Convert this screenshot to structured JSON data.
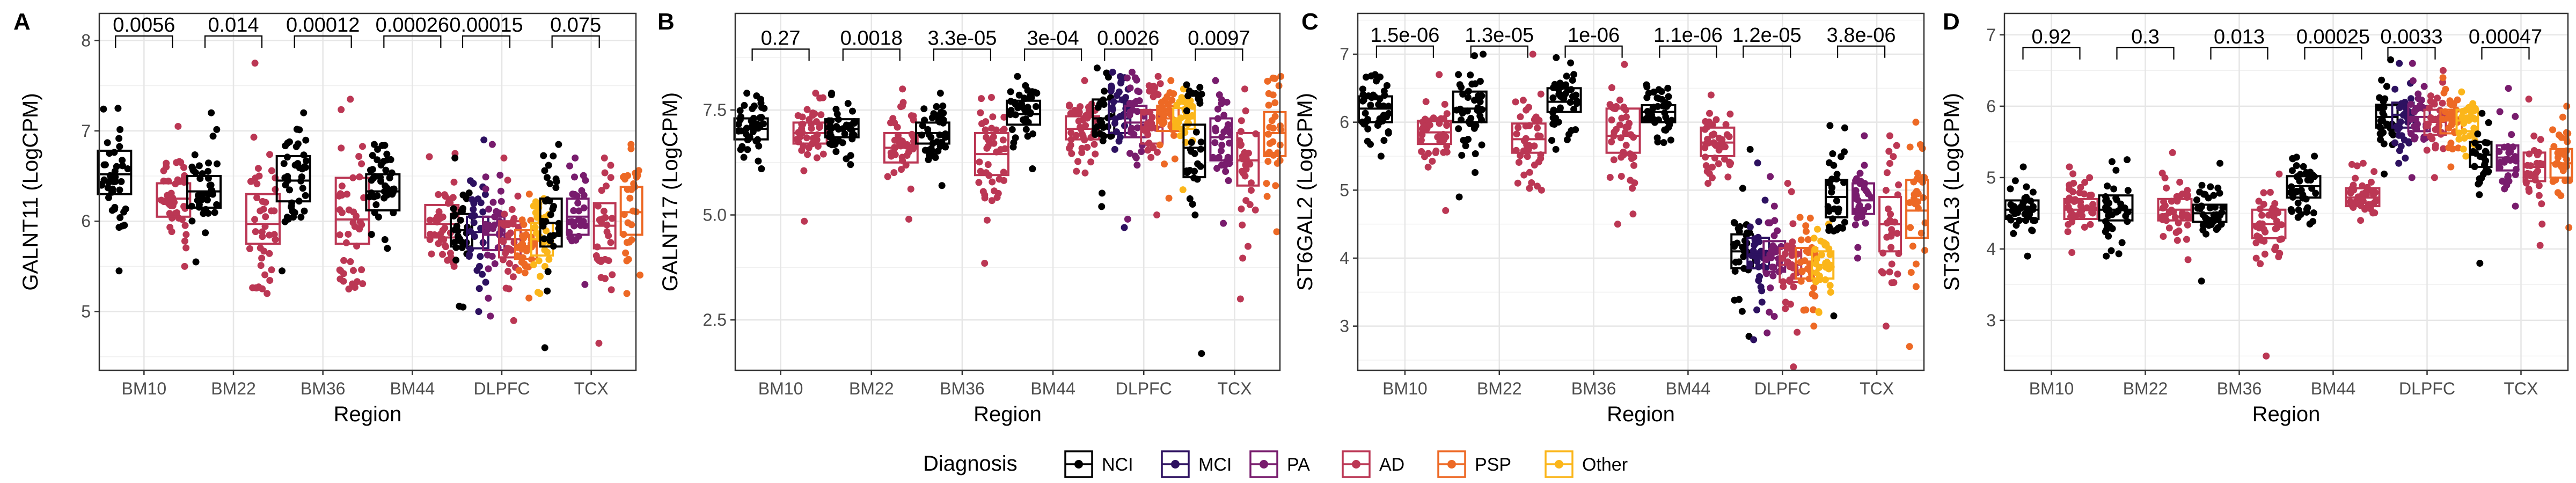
{
  "legend": {
    "title": "Diagnosis",
    "entries": [
      {
        "name": "NCI",
        "color": "#000000"
      },
      {
        "name": "MCI",
        "color": "#2d1160"
      },
      {
        "name": "PA",
        "color": "#781c6d"
      },
      {
        "name": "AD",
        "color": "#bb3754"
      },
      {
        "name": "PSP",
        "color": "#ed6925"
      },
      {
        "name": "Other",
        "color": "#fbb61a"
      }
    ]
  },
  "chart_data": [
    {
      "panel": "A",
      "type": "box",
      "ylabel": "GALNT11 (LogCPM)",
      "xlabel": "Region",
      "categories": [
        "BM10",
        "BM22",
        "BM36",
        "BM44",
        "DLPFC",
        "TCX"
      ],
      "ylim": [
        4.35,
        8.3
      ],
      "yticks": [
        5,
        6,
        7,
        8
      ],
      "pvalues": [
        "0.0056",
        "0.014",
        "0.00012",
        "0.00026",
        "0.00015",
        "0.075"
      ],
      "bracket_y": 8.05,
      "groups": [
        {
          "region": "BM10",
          "series": [
            {
              "name": "NCI",
              "q1": 6.3,
              "median": 6.52,
              "q3": 6.78,
              "min": 5.45,
              "max": 7.25
            },
            {
              "name": "AD",
              "q1": 6.05,
              "median": 6.25,
              "q3": 6.42,
              "min": 5.5,
              "max": 7.05
            }
          ]
        },
        {
          "region": "BM22",
          "series": [
            {
              "name": "NCI",
              "q1": 6.15,
              "median": 6.33,
              "q3": 6.5,
              "min": 5.55,
              "max": 7.2
            },
            {
              "name": "AD",
              "q1": 5.75,
              "median": 5.97,
              "q3": 6.3,
              "min": 5.2,
              "max": 7.75
            }
          ]
        },
        {
          "region": "BM36",
          "series": [
            {
              "name": "NCI",
              "q1": 6.22,
              "median": 6.45,
              "q3": 6.72,
              "min": 5.45,
              "max": 7.2
            },
            {
              "name": "AD",
              "q1": 5.75,
              "median": 6.02,
              "q3": 6.48,
              "min": 5.25,
              "max": 7.35
            }
          ]
        },
        {
          "region": "BM44",
          "series": [
            {
              "name": "NCI",
              "q1": 6.12,
              "median": 6.33,
              "q3": 6.52,
              "min": 5.7,
              "max": 6.85
            },
            {
              "name": "AD",
              "q1": 5.82,
              "median": 5.97,
              "q3": 6.18,
              "min": 5.5,
              "max": 6.75
            }
          ]
        },
        {
          "region": "DLPFC",
          "series": [
            {
              "name": "NCI",
              "q1": 5.72,
              "median": 5.9,
              "q3": 6.08,
              "min": 5.05,
              "max": 6.7
            },
            {
              "name": "MCI",
              "q1": 5.7,
              "median": 5.88,
              "q3": 6.05,
              "min": 5.0,
              "max": 6.9
            },
            {
              "name": "PA",
              "q1": 5.68,
              "median": 5.85,
              "q3": 6.05,
              "min": 4.95,
              "max": 6.85
            },
            {
              "name": "AD",
              "q1": 5.6,
              "median": 5.8,
              "q3": 6.0,
              "min": 4.9,
              "max": 6.7
            },
            {
              "name": "PSP",
              "q1": 5.58,
              "median": 5.72,
              "q3": 5.9,
              "min": 5.15,
              "max": 6.3
            },
            {
              "name": "Other",
              "q1": 5.62,
              "median": 5.8,
              "q3": 5.98,
              "min": 5.2,
              "max": 6.25
            }
          ]
        },
        {
          "region": "TCX",
          "series": [
            {
              "name": "NCI",
              "q1": 5.72,
              "median": 5.98,
              "q3": 6.25,
              "min": 4.6,
              "max": 6.85
            },
            {
              "name": "PA",
              "q1": 5.85,
              "median": 6.05,
              "q3": 6.25,
              "min": 5.3,
              "max": 6.7
            },
            {
              "name": "AD",
              "q1": 5.7,
              "median": 5.95,
              "q3": 6.2,
              "min": 4.65,
              "max": 6.7
            },
            {
              "name": "PSP",
              "q1": 5.85,
              "median": 6.1,
              "q3": 6.38,
              "min": 5.2,
              "max": 6.85
            }
          ]
        }
      ]
    },
    {
      "panel": "B",
      "type": "box",
      "ylabel": "GALNT17 (LogCPM)",
      "xlabel": "Region",
      "categories": [
        "BM10",
        "BM22",
        "BM36",
        "BM44",
        "DLPFC",
        "TCX"
      ],
      "ylim": [
        1.3,
        9.8
      ],
      "yticks": [
        2.5,
        5.0,
        7.5
      ],
      "ytick_labels": [
        "2.5",
        "5.0",
        "7.5"
      ],
      "pvalues": [
        "0.27",
        "0.0018",
        "3.3e-05",
        "3e-04",
        "0.0026",
        "0.0097"
      ],
      "bracket_y": 8.95,
      "groups": [
        {
          "region": "BM10",
          "series": [
            {
              "name": "NCI",
              "q1": 6.8,
              "median": 7.05,
              "q3": 7.3,
              "min": 6.1,
              "max": 7.9
            },
            {
              "name": "AD",
              "q1": 6.7,
              "median": 6.95,
              "q3": 7.2,
              "min": 4.85,
              "max": 7.9
            }
          ]
        },
        {
          "region": "BM22",
          "series": [
            {
              "name": "NCI",
              "q1": 6.85,
              "median": 7.05,
              "q3": 7.28,
              "min": 6.2,
              "max": 7.9
            },
            {
              "name": "AD",
              "q1": 6.25,
              "median": 6.6,
              "q3": 6.95,
              "min": 4.9,
              "max": 8.0
            }
          ]
        },
        {
          "region": "BM36",
          "series": [
            {
              "name": "NCI",
              "q1": 6.7,
              "median": 6.95,
              "q3": 7.2,
              "min": 5.7,
              "max": 7.9
            },
            {
              "name": "AD",
              "q1": 5.95,
              "median": 6.45,
              "q3": 6.95,
              "min": 3.85,
              "max": 7.8
            }
          ]
        },
        {
          "region": "BM44",
          "series": [
            {
              "name": "NCI",
              "q1": 7.15,
              "median": 7.4,
              "q3": 7.72,
              "min": 6.1,
              "max": 8.3
            },
            {
              "name": "AD",
              "q1": 6.8,
              "median": 7.05,
              "q3": 7.35,
              "min": 6.0,
              "max": 8.2
            }
          ]
        },
        {
          "region": "DLPFC",
          "series": [
            {
              "name": "NCI",
              "q1": 6.9,
              "median": 7.3,
              "q3": 7.75,
              "min": 5.2,
              "max": 8.5
            },
            {
              "name": "MCI",
              "q1": 6.95,
              "median": 7.3,
              "q3": 7.7,
              "min": 4.7,
              "max": 8.4
            },
            {
              "name": "PA",
              "q1": 6.85,
              "median": 7.2,
              "q3": 7.6,
              "min": 4.9,
              "max": 8.4
            },
            {
              "name": "AD",
              "q1": 6.7,
              "median": 7.1,
              "q3": 7.5,
              "min": 5.0,
              "max": 8.3
            },
            {
              "name": "PSP",
              "q1": 7.0,
              "median": 7.3,
              "q3": 7.6,
              "min": 5.4,
              "max": 8.2
            },
            {
              "name": "Other",
              "q1": 7.05,
              "median": 7.3,
              "q3": 7.55,
              "min": 5.6,
              "max": 8.0
            }
          ]
        },
        {
          "region": "TCX",
          "series": [
            {
              "name": "NCI",
              "q1": 5.9,
              "median": 6.6,
              "q3": 7.15,
              "min": 1.7,
              "max": 8.1
            },
            {
              "name": "PA",
              "q1": 6.3,
              "median": 6.85,
              "q3": 7.3,
              "min": 4.8,
              "max": 8.2
            },
            {
              "name": "AD",
              "q1": 5.7,
              "median": 6.3,
              "q3": 6.95,
              "min": 3.0,
              "max": 8.0
            },
            {
              "name": "PSP",
              "q1": 6.4,
              "median": 6.95,
              "q3": 7.45,
              "min": 4.6,
              "max": 8.3
            }
          ]
        }
      ]
    },
    {
      "panel": "C",
      "type": "box",
      "ylabel": "ST6GAL2 (LogCPM)",
      "xlabel": "Region",
      "categories": [
        "BM10",
        "BM22",
        "BM36",
        "BM44",
        "DLPFC",
        "TCX"
      ],
      "ylim": [
        2.35,
        7.6
      ],
      "yticks": [
        3,
        4,
        5,
        6,
        7
      ],
      "pvalues": [
        "1.5e-06",
        "1.3e-05",
        "1e-06",
        "1.1e-06",
        "1.2e-05",
        "3.8e-06"
      ],
      "bracket_y": 7.12,
      "groups": [
        {
          "region": "BM10",
          "series": [
            {
              "name": "NCI",
              "q1": 6.0,
              "median": 6.2,
              "q3": 6.38,
              "min": 5.5,
              "max": 6.7
            },
            {
              "name": "AD",
              "q1": 5.68,
              "median": 5.85,
              "q3": 6.02,
              "min": 4.7,
              "max": 6.7
            }
          ]
        },
        {
          "region": "BM22",
          "series": [
            {
              "name": "NCI",
              "q1": 6.0,
              "median": 6.2,
              "q3": 6.45,
              "min": 4.9,
              "max": 7.0
            },
            {
              "name": "AD",
              "q1": 5.55,
              "median": 5.75,
              "q3": 5.98,
              "min": 5.0,
              "max": 7.0
            }
          ]
        },
        {
          "region": "BM36",
          "series": [
            {
              "name": "NCI",
              "q1": 6.15,
              "median": 6.3,
              "q3": 6.5,
              "min": 5.6,
              "max": 6.95
            },
            {
              "name": "AD",
              "q1": 5.55,
              "median": 5.8,
              "q3": 6.2,
              "min": 4.5,
              "max": 6.85
            }
          ]
        },
        {
          "region": "BM44",
          "series": [
            {
              "name": "NCI",
              "q1": 6.0,
              "median": 6.15,
              "q3": 6.25,
              "min": 5.7,
              "max": 6.55
            },
            {
              "name": "AD",
              "q1": 5.5,
              "median": 5.7,
              "q3": 5.92,
              "min": 5.1,
              "max": 6.4
            }
          ]
        },
        {
          "region": "DLPFC",
          "series": [
            {
              "name": "NCI",
              "q1": 3.85,
              "median": 4.1,
              "q3": 4.35,
              "min": 2.85,
              "max": 5.6
            },
            {
              "name": "MCI",
              "q1": 3.85,
              "median": 4.05,
              "q3": 4.3,
              "min": 2.8,
              "max": 5.4
            },
            {
              "name": "PA",
              "q1": 3.8,
              "median": 4.0,
              "q3": 4.25,
              "min": 2.9,
              "max": 5.2
            },
            {
              "name": "AD",
              "q1": 3.65,
              "median": 3.9,
              "q3": 4.15,
              "min": 2.4,
              "max": 5.1
            },
            {
              "name": "PSP",
              "q1": 3.7,
              "median": 3.95,
              "q3": 4.15,
              "min": 3.0,
              "max": 4.6
            },
            {
              "name": "Other",
              "q1": 3.7,
              "median": 3.9,
              "q3": 4.1,
              "min": 3.2,
              "max": 4.5
            }
          ]
        },
        {
          "region": "TCX",
          "series": [
            {
              "name": "NCI",
              "q1": 4.6,
              "median": 4.9,
              "q3": 5.15,
              "min": 3.15,
              "max": 5.95
            },
            {
              "name": "PA",
              "q1": 4.65,
              "median": 4.85,
              "q3": 5.1,
              "min": 4.0,
              "max": 5.8
            },
            {
              "name": "AD",
              "q1": 4.1,
              "median": 4.5,
              "q3": 4.9,
              "min": 3.0,
              "max": 5.8
            },
            {
              "name": "PSP",
              "q1": 4.3,
              "median": 4.7,
              "q3": 5.15,
              "min": 2.7,
              "max": 6.0
            }
          ]
        }
      ]
    },
    {
      "panel": "D",
      "type": "box",
      "ylabel": "ST3GAL3 (LogCPM)",
      "xlabel": "Region",
      "categories": [
        "BM10",
        "BM22",
        "BM36",
        "BM44",
        "DLPFC",
        "TCX"
      ],
      "ylim": [
        2.3,
        7.3
      ],
      "yticks": [
        3,
        4,
        5,
        6,
        7
      ],
      "pvalues": [
        "0.92",
        "0.3",
        "0.013",
        "0.00025",
        "0.0033",
        "0.00047"
      ],
      "bracket_y": 6.82,
      "groups": [
        {
          "region": "BM10",
          "series": [
            {
              "name": "NCI",
              "q1": 4.42,
              "median": 4.55,
              "q3": 4.68,
              "min": 3.9,
              "max": 5.15
            },
            {
              "name": "AD",
              "q1": 4.42,
              "median": 4.55,
              "q3": 4.7,
              "min": 3.95,
              "max": 5.15
            }
          ]
        },
        {
          "region": "BM22",
          "series": [
            {
              "name": "NCI",
              "q1": 4.4,
              "median": 4.55,
              "q3": 4.75,
              "min": 3.9,
              "max": 5.25
            },
            {
              "name": "AD",
              "q1": 4.4,
              "median": 4.55,
              "q3": 4.7,
              "min": 3.85,
              "max": 5.35
            }
          ]
        },
        {
          "region": "BM36",
          "series": [
            {
              "name": "NCI",
              "q1": 4.38,
              "median": 4.5,
              "q3": 4.62,
              "min": 3.55,
              "max": 5.2
            },
            {
              "name": "AD",
              "q1": 4.15,
              "median": 4.35,
              "q3": 4.55,
              "min": 2.5,
              "max": 5.05
            }
          ]
        },
        {
          "region": "BM44",
          "series": [
            {
              "name": "NCI",
              "q1": 4.72,
              "median": 4.88,
              "q3": 5.02,
              "min": 4.35,
              "max": 5.3
            },
            {
              "name": "AD",
              "q1": 4.6,
              "median": 4.72,
              "q3": 4.85,
              "min": 4.4,
              "max": 5.2
            }
          ]
        },
        {
          "region": "DLPFC",
          "series": [
            {
              "name": "NCI",
              "q1": 5.7,
              "median": 5.85,
              "q3": 6.02,
              "min": 5.05,
              "max": 6.65
            },
            {
              "name": "MCI",
              "q1": 5.7,
              "median": 5.88,
              "q3": 6.05,
              "min": 5.2,
              "max": 6.6
            },
            {
              "name": "PA",
              "q1": 5.65,
              "median": 5.85,
              "q3": 6.0,
              "min": 5.0,
              "max": 6.6
            },
            {
              "name": "AD",
              "q1": 5.6,
              "median": 5.78,
              "q3": 5.95,
              "min": 5.0,
              "max": 6.5
            },
            {
              "name": "PSP",
              "q1": 5.62,
              "median": 5.8,
              "q3": 5.95,
              "min": 5.15,
              "max": 6.4
            },
            {
              "name": "Other",
              "q1": 5.65,
              "median": 5.8,
              "q3": 5.95,
              "min": 5.3,
              "max": 6.2
            }
          ]
        },
        {
          "region": "TCX",
          "series": [
            {
              "name": "NCI",
              "q1": 5.15,
              "median": 5.32,
              "q3": 5.5,
              "min": 3.8,
              "max": 5.9
            },
            {
              "name": "PA",
              "q1": 5.1,
              "median": 5.28,
              "q3": 5.45,
              "min": 4.6,
              "max": 6.25
            },
            {
              "name": "AD",
              "q1": 4.95,
              "median": 5.15,
              "q3": 5.35,
              "min": 4.05,
              "max": 6.1
            },
            {
              "name": "PSP",
              "q1": 5.0,
              "median": 5.2,
              "q3": 5.4,
              "min": 4.3,
              "max": 6.0
            }
          ]
        }
      ]
    }
  ]
}
